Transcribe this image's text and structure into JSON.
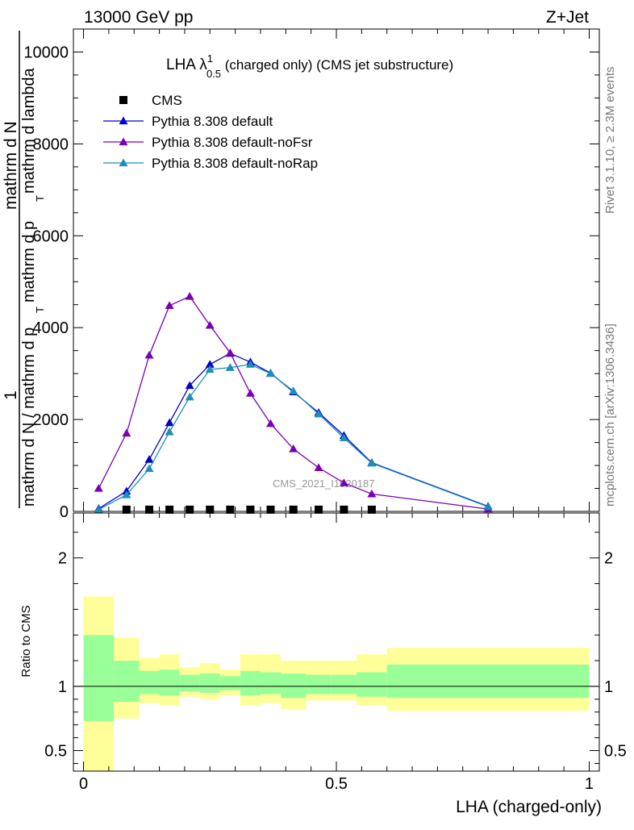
{
  "header": {
    "left": "13000 GeV pp",
    "right": "Z+Jet"
  },
  "side_text": {
    "rivet": "Rivet 3.1.10, ≥ 2.3M events",
    "mcplots": "mcplots.cern.ch [arXiv:1306.3436]"
  },
  "chart_data": [
    {
      "type": "line",
      "title": "LHA λ¹₀.₅ (charged only) (CMS jet substructure)",
      "title_main": "LHA λ",
      "title_sup": "1",
      "title_sub": "0.5",
      "title_rest": " (charged only) (CMS jet substructure)",
      "ylabel_lines": [
        "1",
        "mathrm d N / mathrm d p",
        "T",
        "mathrm d N",
        "mathrm d p",
        "T",
        " mathrm d lambda"
      ],
      "xlim": [
        -0.02,
        1.02
      ],
      "ylim": [
        0,
        10500
      ],
      "yticks": [
        0,
        2000,
        4000,
        6000,
        8000,
        10000
      ],
      "ytick_labels": [
        "0",
        "2000",
        "4000",
        "6000",
        "8000",
        "10000"
      ],
      "watermark": "CMS_2021_I1920187",
      "legend_position": "top-left",
      "series": [
        {
          "name": "CMS",
          "color": "#000000",
          "marker": "square",
          "x": [
            0.085,
            0.13,
            0.17,
            0.21,
            0.25,
            0.29,
            0.33,
            0.37,
            0.415,
            0.465,
            0.515,
            0.57
          ],
          "y": [
            20,
            20,
            20,
            20,
            20,
            20,
            20,
            20,
            20,
            20,
            20,
            20
          ]
        },
        {
          "name": "Pythia 8.308 default",
          "color": "#0000cc",
          "marker": "triangle",
          "x": [
            0.03,
            0.085,
            0.13,
            0.17,
            0.21,
            0.25,
            0.29,
            0.33,
            0.37,
            0.415,
            0.465,
            0.515,
            0.57,
            0.8
          ],
          "y": [
            60,
            440,
            1130,
            1930,
            2740,
            3200,
            3440,
            3250,
            3010,
            2600,
            2150,
            1650,
            1060,
            110
          ]
        },
        {
          "name": "Pythia 8.308 default-noFsr",
          "color": "#7a00b4",
          "marker": "triangle",
          "x": [
            0.03,
            0.085,
            0.13,
            0.17,
            0.21,
            0.25,
            0.29,
            0.33,
            0.37,
            0.415,
            0.465,
            0.515,
            0.57,
            0.8
          ],
          "y": [
            500,
            1700,
            3400,
            4480,
            4680,
            4050,
            3450,
            2570,
            1910,
            1360,
            950,
            620,
            380,
            50
          ]
        },
        {
          "name": "Pythia 8.308 default-noRap",
          "color": "#1a8fb8",
          "marker": "triangle",
          "x": [
            0.03,
            0.085,
            0.13,
            0.17,
            0.21,
            0.25,
            0.29,
            0.33,
            0.37,
            0.415,
            0.465,
            0.515,
            0.57,
            0.8
          ],
          "y": [
            40,
            360,
            930,
            1730,
            2490,
            3090,
            3130,
            3200,
            3000,
            2620,
            2120,
            1600,
            1050,
            100
          ]
        }
      ]
    },
    {
      "type": "area",
      "ylabel": "Ratio to CMS",
      "xlabel": "LHA (charged-only)",
      "ylim": [
        0.34,
        2.35
      ],
      "xticks": [
        0,
        0.5,
        1
      ],
      "xtick_labels": [
        "0",
        "0.5",
        "1"
      ],
      "yticks": [
        0.5,
        1,
        2
      ],
      "ytick_labels": [
        "0.5",
        "1",
        "2"
      ],
      "reference_line": 1,
      "bands": {
        "edges": [
          0,
          0.06,
          0.11,
          0.15,
          0.19,
          0.23,
          0.27,
          0.31,
          0.35,
          0.39,
          0.44,
          0.49,
          0.54,
          0.6,
          1.0
        ],
        "yellow_low": [
          0.34,
          0.75,
          0.87,
          0.85,
          0.92,
          0.9,
          0.93,
          0.85,
          0.87,
          0.82,
          0.89,
          0.89,
          0.85,
          0.81
        ],
        "yellow_high": [
          1.7,
          1.38,
          1.22,
          1.25,
          1.15,
          1.18,
          1.13,
          1.25,
          1.25,
          1.2,
          1.2,
          1.2,
          1.25,
          1.3
        ],
        "green_low": [
          0.73,
          0.88,
          0.94,
          0.93,
          0.96,
          0.95,
          0.97,
          0.93,
          0.94,
          0.91,
          0.94,
          0.94,
          0.92,
          0.91
        ],
        "green_high": [
          1.4,
          1.2,
          1.12,
          1.13,
          1.09,
          1.1,
          1.08,
          1.12,
          1.11,
          1.1,
          1.09,
          1.09,
          1.11,
          1.17
        ]
      }
    }
  ]
}
